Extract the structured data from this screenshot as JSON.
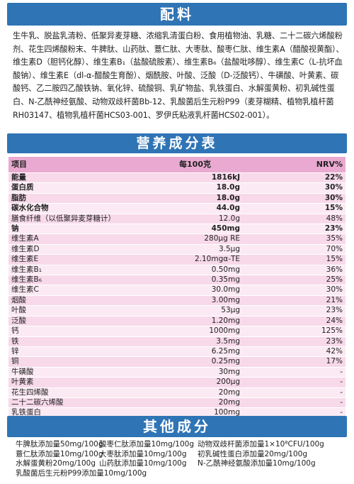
{
  "sections": {
    "ingredients_title": "配料",
    "nutrition_title": "营养成分表",
    "other_title": "其他成分"
  },
  "ingredients_text": "生牛乳、脱盐乳清粉、低聚异麦芽糖、浓缩乳清蛋白粉、食用植物油、乳糖、二十二碳六烯酸粉剂、花生四烯酸粉末、牛脾肽、山药肽、薏仁肽、大枣肽、酸枣仁肽、维生素A（醋酸视黄酯）、维生素D（胆钙化醇）、维生素B₁（盐酸硫胺素）、维生素B₆（盐酸吡哆醇）、维生素C（L-抗坏血酸钠）、维生素E（dl-α-醋酸生育酚）、烟酰胺、叶酸、泛酸（D-泛酸钙）、牛磺酸、叶黄素、碳酸钙、乙二胺四乙酸铁钠、氧化锌、硫酸铜、乳矿物盐、乳铁蛋白、水解蛋黄粉、初乳碱性蛋白、N-乙酰神经氨酸、动物双歧杆菌Bb-12、乳酸菌后生元粉P99（麦芽糊精、植物乳植杆菌RH03147、植物乳植杆菌HCS03-001、罗伊氏粘液乳杆菌HCS02-001）。",
  "nutrition_table": {
    "headers": {
      "item": "项目",
      "amount": "每100克",
      "nrv": "NRV%"
    },
    "rows": [
      {
        "name": "能量",
        "amount": "1816kJ",
        "nrv": "22%",
        "bold": true
      },
      {
        "name": "蛋白质",
        "amount": "18.0g",
        "nrv": "30%",
        "bold": true
      },
      {
        "name": "脂肪",
        "amount": "18.0g",
        "nrv": "30%",
        "bold": true
      },
      {
        "name": "碳水化合物",
        "amount": "44.0g",
        "nrv": "15%",
        "bold": true
      },
      {
        "name": "膳食纤维（以低聚异麦芽糖计）",
        "amount": "12.0g",
        "nrv": "48%",
        "bold": false
      },
      {
        "name": "钠",
        "amount": "450mg",
        "nrv": "23%",
        "bold": true
      },
      {
        "name": "维生素A",
        "amount": "280μg RE",
        "nrv": "35%",
        "bold": false
      },
      {
        "name": "维生素D",
        "amount": "3.5μg",
        "nrv": "70%",
        "bold": false
      },
      {
        "name": "维生素E",
        "amount": "2.10mgα-TE",
        "nrv": "15%",
        "bold": false
      },
      {
        "name": "维生素B₁",
        "amount": "0.50mg",
        "nrv": "36%",
        "bold": false
      },
      {
        "name": "维生素B₆",
        "amount": "0.35mg",
        "nrv": "25%",
        "bold": false
      },
      {
        "name": "维生素C",
        "amount": "30.0mg",
        "nrv": "30%",
        "bold": false
      },
      {
        "name": "烟酸",
        "amount": "3.00mg",
        "nrv": "21%",
        "bold": false
      },
      {
        "name": "叶酸",
        "amount": "53μg",
        "nrv": "23%",
        "bold": false
      },
      {
        "name": "泛酸",
        "amount": "1.20mg",
        "nrv": "24%",
        "bold": false
      },
      {
        "name": "钙",
        "amount": "1000mg",
        "nrv": "125%",
        "bold": false
      },
      {
        "name": "铁",
        "amount": "3.5mg",
        "nrv": "23%",
        "bold": false
      },
      {
        "name": "锌",
        "amount": "6.25mg",
        "nrv": "42%",
        "bold": false
      },
      {
        "name": "铜",
        "amount": "0.25mg",
        "nrv": "17%",
        "bold": false
      },
      {
        "name": "牛磺酸",
        "amount": "30mg",
        "nrv": "-",
        "bold": false
      },
      {
        "name": "叶黄素",
        "amount": "200μg",
        "nrv": "-",
        "bold": false
      },
      {
        "name": "花生四烯酸",
        "amount": "20mg",
        "nrv": "-",
        "bold": false
      },
      {
        "name": "二十二碳六烯酸",
        "amount": "20mg",
        "nrv": "-",
        "bold": false
      },
      {
        "name": "乳铁蛋白",
        "amount": "100mg",
        "nrv": "-",
        "bold": false
      }
    ]
  },
  "other_components": [
    [
      "牛脾肽添加量50mg/100g",
      "酸枣仁肽添加量10mg/100g",
      "动物双歧杆菌添加量1×10⁸CFU/100g"
    ],
    [
      "薏仁肽添加量10mg/100g",
      "大枣肽添加量10mg/100g",
      "初乳碱性蛋白添加量20mg/100g"
    ],
    [
      "水解蛋黄粉20mg/100g",
      "山药肽添加量10mg/100g",
      "N-乙酰神经氨酸添加量10mg/100g"
    ],
    [
      "乳酸菌后生元粉P99添加量10mg/100g",
      "",
      ""
    ]
  ]
}
